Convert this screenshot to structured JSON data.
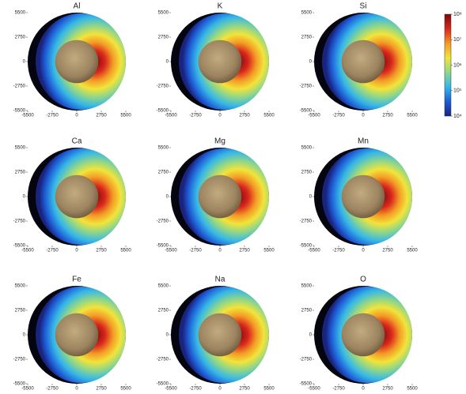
{
  "chart_data": [
    {
      "type": "heatmap",
      "title": "Al",
      "xlim": [
        -5500,
        5500
      ],
      "ylim": [
        -5500,
        5500
      ],
      "xticks": [
        -5500,
        -2750,
        0,
        2750,
        5500
      ],
      "yticks": [
        -5500,
        -2750,
        0,
        2750,
        5500
      ]
    },
    {
      "type": "heatmap",
      "title": "K",
      "xlim": [
        -5500,
        5500
      ],
      "ylim": [
        -5500,
        5500
      ],
      "xticks": [
        -5500,
        -2750,
        0,
        2750,
        5500
      ],
      "yticks": [
        -5500,
        -2750,
        0,
        2750,
        5500
      ]
    },
    {
      "type": "heatmap",
      "title": "Si",
      "xlim": [
        -5500,
        5500
      ],
      "ylim": [
        -5500,
        5500
      ],
      "xticks": [
        -5500,
        -2750,
        0,
        2750,
        5500
      ],
      "yticks": [
        -5500,
        -2750,
        0,
        2750,
        5500
      ]
    },
    {
      "type": "heatmap",
      "title": "Ca",
      "xlim": [
        -5500,
        5500
      ],
      "ylim": [
        -5500,
        5500
      ],
      "xticks": [
        -5500,
        -2750,
        0,
        2750,
        5500
      ],
      "yticks": [
        -5500,
        -2750,
        0,
        2750,
        5500
      ]
    },
    {
      "type": "heatmap",
      "title": "Mg",
      "xlim": [
        -5500,
        5500
      ],
      "ylim": [
        -5500,
        5500
      ],
      "xticks": [
        -5500,
        -2750,
        0,
        2750,
        5500
      ],
      "yticks": [
        -5500,
        -2750,
        0,
        2750,
        5500
      ]
    },
    {
      "type": "heatmap",
      "title": "Mn",
      "xlim": [
        -5500,
        5500
      ],
      "ylim": [
        -5500,
        5500
      ],
      "xticks": [
        -5500,
        -2750,
        0,
        2750,
        5500
      ],
      "yticks": [
        -5500,
        -2750,
        0,
        2750,
        5500
      ]
    },
    {
      "type": "heatmap",
      "title": "Fe",
      "xlim": [
        -5500,
        5500
      ],
      "ylim": [
        -5500,
        5500
      ],
      "xticks": [
        -5500,
        -2750,
        0,
        2750,
        5500
      ],
      "yticks": [
        -5500,
        -2750,
        0,
        2750,
        5500
      ]
    },
    {
      "type": "heatmap",
      "title": "Na",
      "xlim": [
        -5500,
        5500
      ],
      "ylim": [
        -5500,
        5500
      ],
      "xticks": [
        -5500,
        -2750,
        0,
        2750,
        5500
      ],
      "yticks": [
        -5500,
        -2750,
        0,
        2750,
        5500
      ]
    },
    {
      "type": "heatmap",
      "title": "O",
      "xlim": [
        -5500,
        5500
      ],
      "ylim": [
        -5500,
        5500
      ],
      "xticks": [
        -5500,
        -2750,
        0,
        2750,
        5500
      ],
      "yticks": [
        -5500,
        -2750,
        0,
        2750,
        5500
      ]
    }
  ],
  "colorbar": {
    "log": true,
    "ylim": [
      10000,
      100000000
    ],
    "yticks": [
      {
        "value": 10000,
        "label": "10⁴"
      },
      {
        "value": 100000,
        "label": "10⁵"
      },
      {
        "value": 1000000,
        "label": "10⁶"
      },
      {
        "value": 10000000,
        "label": "10⁷"
      },
      {
        "value": 100000000,
        "label": "10⁸"
      }
    ],
    "colors": [
      "#1a237e",
      "#1e5bd6",
      "#35b7e8",
      "#8fd68a",
      "#f2e43a",
      "#f39a26",
      "#d9261c",
      "#7a0a0a"
    ]
  }
}
